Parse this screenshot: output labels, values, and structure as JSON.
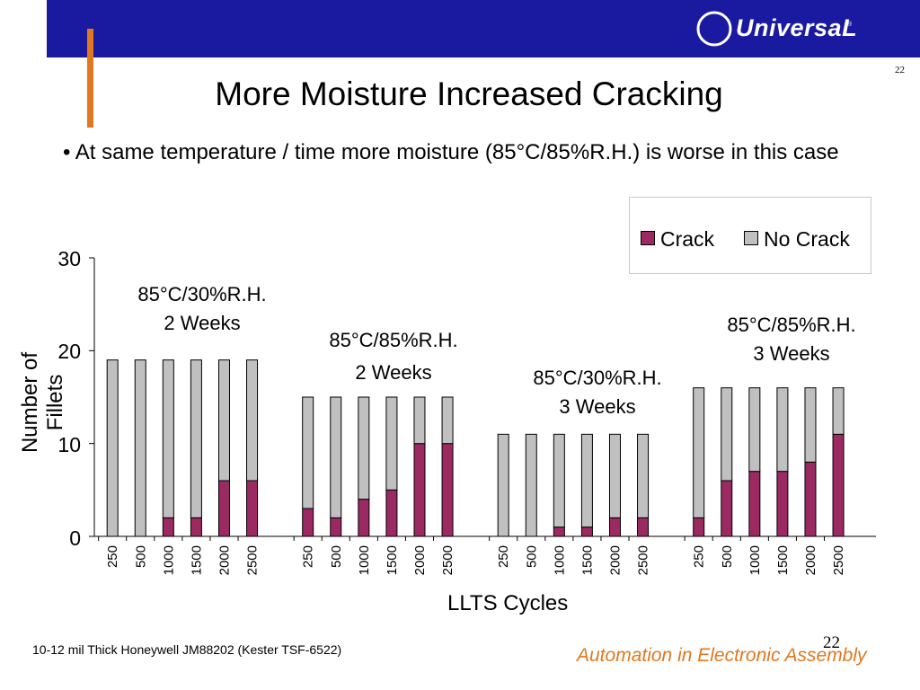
{
  "colors": {
    "band": "#1a1aa0",
    "accent_orange": "#e07820",
    "crack": "#9b2a63",
    "no_crack": "#c0c0c0",
    "tagline": "#e07820"
  },
  "header": {
    "logo_text": "UniversaL",
    "logo_mark": "®",
    "page_number": "22"
  },
  "slide": {
    "title": "More Moisture Increased Cracking",
    "bullet": "• At same temperature / time more moisture (85°C/85%R.H.) is worse in this case"
  },
  "footer": {
    "note": "10-12 mil Thick Honeywell JM88202 (Kester TSF-6522)",
    "page_number": "22",
    "tagline": "Automation in Electronic Assembly"
  },
  "chart_data": {
    "type": "bar",
    "stacked": true,
    "xlabel": "LLTS Cycles",
    "ylabel": "Number of Fillets",
    "ylim": [
      0,
      30
    ],
    "yticks": [
      0,
      10,
      20,
      30
    ],
    "legend": {
      "position": "top-right",
      "entries": [
        "Crack",
        "No Crack"
      ]
    },
    "annotations": [
      {
        "line1": "85°C/30%R.H.",
        "line2": "2 Weeks"
      },
      {
        "line1": "85°C/85%R.H.",
        "line2": "2 Weeks"
      },
      {
        "line1": "85°C/30%R.H.",
        "line2": "3 Weeks"
      },
      {
        "line1": "85°C/85%R.H.",
        "line2": "3 Weeks"
      }
    ],
    "categories": [
      "250",
      "500",
      "1000",
      "1500",
      "2000",
      "2500",
      "250",
      "500",
      "1000",
      "1500",
      "2000",
      "2500",
      "250",
      "500",
      "1000",
      "1500",
      "2000",
      "2500",
      "250",
      "500",
      "1000",
      "1500",
      "2000",
      "2500"
    ],
    "series": [
      {
        "name": "Crack",
        "values": [
          0,
          0,
          2,
          2,
          6,
          6,
          3,
          2,
          4,
          5,
          10,
          10,
          0,
          0,
          1,
          1,
          2,
          2,
          2,
          6,
          7,
          7,
          8,
          11
        ]
      },
      {
        "name": "No Crack",
        "values": [
          19,
          19,
          17,
          17,
          13,
          13,
          12,
          13,
          11,
          10,
          5,
          5,
          11,
          11,
          10,
          10,
          9,
          9,
          14,
          10,
          9,
          9,
          8,
          5
        ]
      }
    ]
  }
}
